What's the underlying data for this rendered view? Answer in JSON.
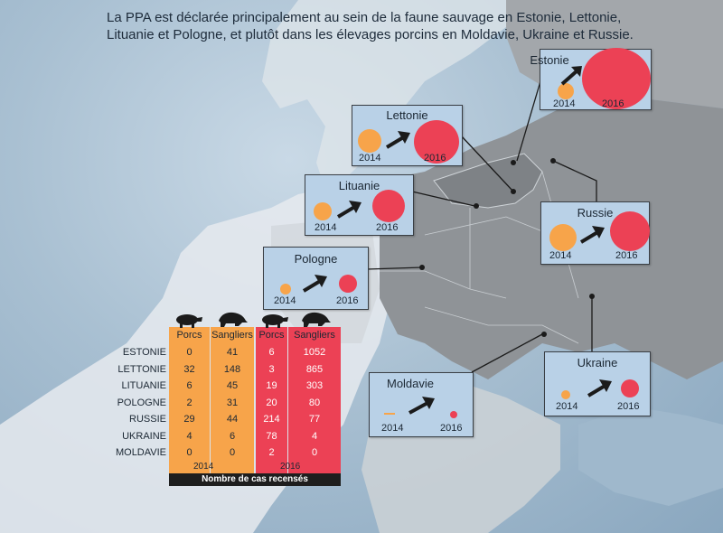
{
  "headline": "La PPA est déclarée principalement au sein de la faune sauvage en Estonie, Lettonie, Lituanie et Pologne, et plutôt dans les élevages porcins en Moldavie, Ukraine et Russie.",
  "colors": {
    "pigs_2014": "#f7a44a",
    "boars_2016": "#ec4155",
    "land": "#8e9296",
    "card": "#b9d1e7"
  },
  "countries": [
    {
      "name": "Estonie",
      "y2014": "2014",
      "y2016": "2016"
    },
    {
      "name": "Lettonie",
      "y2014": "2014",
      "y2016": "2016"
    },
    {
      "name": "Lituanie",
      "y2014": "2014",
      "y2016": "2016"
    },
    {
      "name": "Pologne",
      "y2014": "2014",
      "y2016": "2016"
    },
    {
      "name": "Russie",
      "y2014": "2014",
      "y2016": "2016"
    },
    {
      "name": "Moldavie",
      "y2014": "2014",
      "y2016": "2016"
    },
    {
      "name": "Ukraine",
      "y2014": "2014",
      "y2016": "2016"
    }
  ],
  "table": {
    "headers": [
      "Porcs",
      "Sangliers",
      "Porcs",
      "Sangliers"
    ],
    "rows": [
      {
        "label": "ESTONIE",
        "values": [
          "0",
          "41",
          "6",
          "1052"
        ]
      },
      {
        "label": "LETTONIE",
        "values": [
          "32",
          "148",
          "3",
          "865"
        ]
      },
      {
        "label": "LITUANIE",
        "values": [
          "6",
          "45",
          "19",
          "303"
        ]
      },
      {
        "label": "POLOGNE",
        "values": [
          "2",
          "31",
          "20",
          "80"
        ]
      },
      {
        "label": "RUSSIE",
        "values": [
          "29",
          "44",
          "214",
          "77"
        ]
      },
      {
        "label": "UKRAINE",
        "values": [
          "4",
          "6",
          "78",
          "4"
        ]
      },
      {
        "label": "MOLDAVIE",
        "values": [
          "0",
          "0",
          "2",
          "0"
        ]
      }
    ],
    "year_2014": "2014",
    "year_2016": "2016",
    "footer": "Nombre de cas recensés"
  }
}
